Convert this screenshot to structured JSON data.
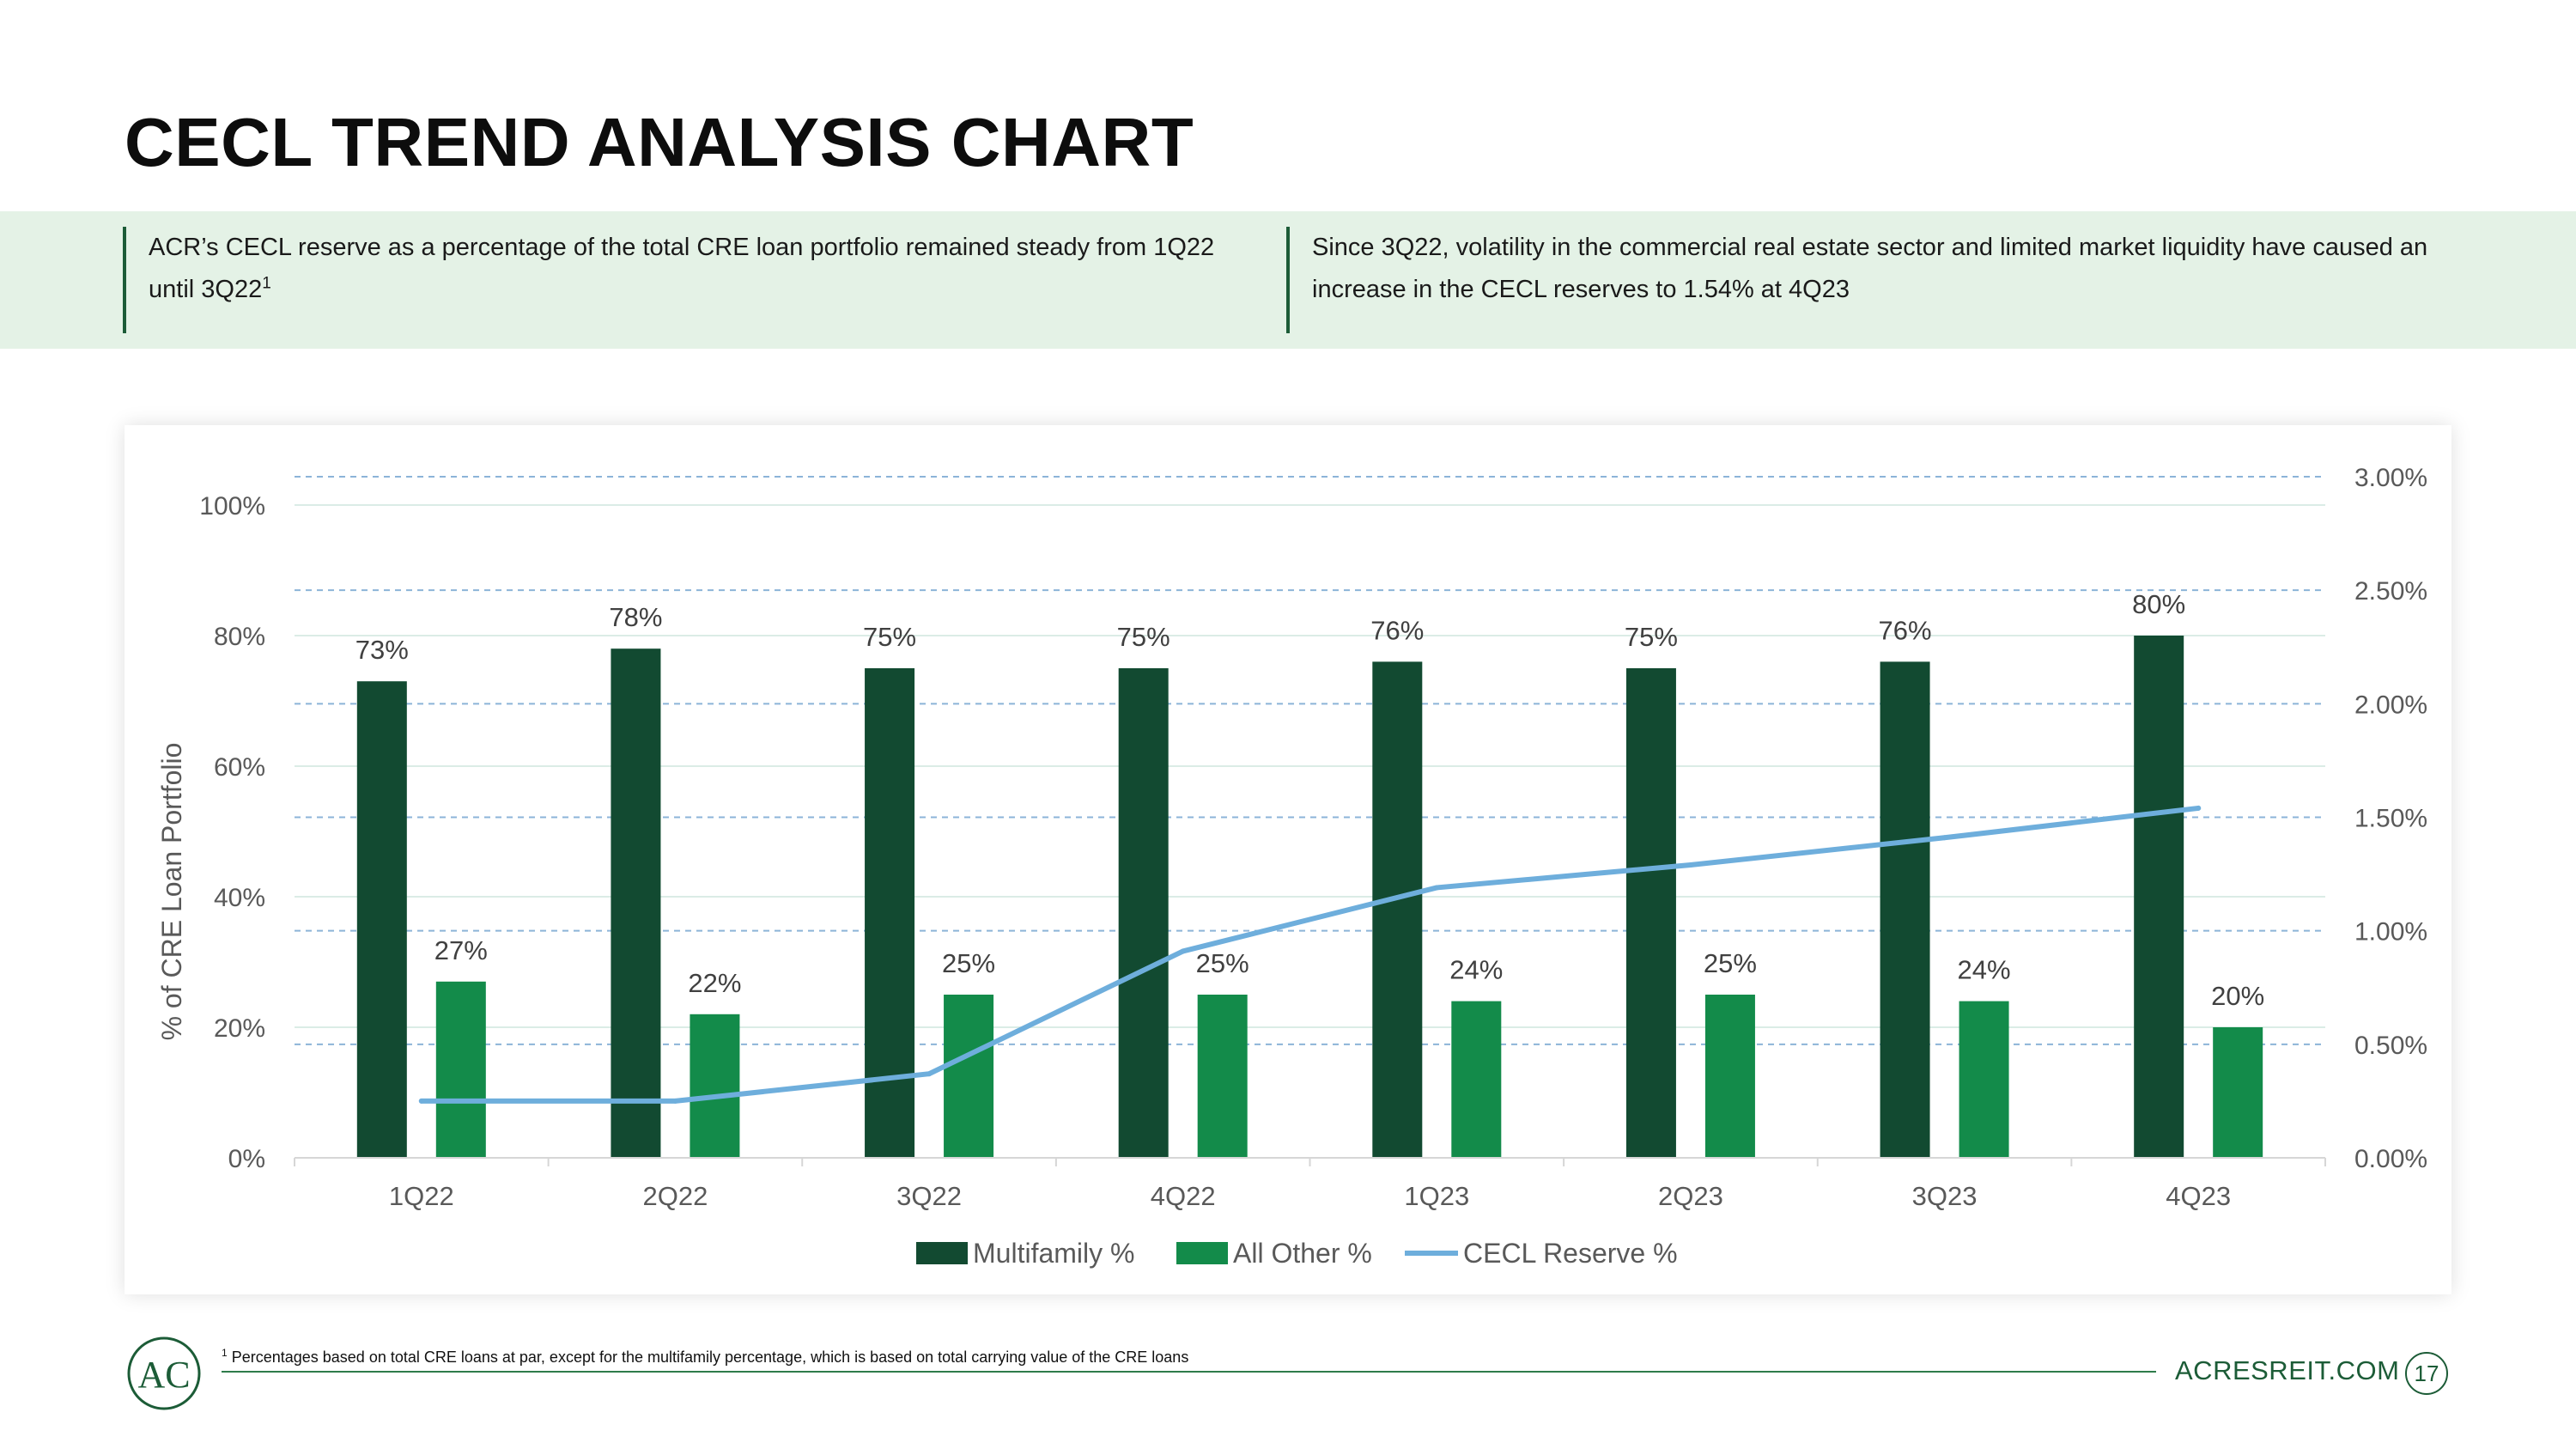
{
  "page": {
    "title": "CECL TREND ANALYSIS CHART",
    "callout_left": {
      "text": "ACR’s CECL reserve as a percentage of the total CRE loan portfolio remained steady from 1Q22 until 3Q22",
      "sup": "1"
    },
    "callout_right": {
      "text": "Since 3Q22, volatility in the commercial real estate sector and limited market liquidity have caused an increase in the CECL reserves to 1.54% at 4Q23"
    },
    "footnote": {
      "sup": "1",
      "text": "Percentages based on total CRE loans at par, except for the multifamily percentage, which is based on total carrying value of the CRE loans"
    },
    "site": "ACRESREIT.COM",
    "page_number": "17",
    "logo_letters": "AC"
  },
  "colors": {
    "accent_dark": "#1c5c37",
    "multifamily": "#124a31",
    "all_other": "#138b4a",
    "cecl_line": "#6eaedc",
    "band": "#e4f2e6"
  },
  "chart_data": {
    "type": "bar",
    "title": "",
    "categories": [
      "1Q22",
      "2Q22",
      "3Q22",
      "4Q22",
      "1Q23",
      "2Q23",
      "3Q23",
      "4Q23"
    ],
    "series": [
      {
        "name": "Multifamily %",
        "type": "bar",
        "axis": "left",
        "values": [
          73,
          78,
          75,
          75,
          76,
          75,
          76,
          80
        ],
        "labels": [
          "73%",
          "78%",
          "75%",
          "75%",
          "76%",
          "75%",
          "76%",
          "80%"
        ]
      },
      {
        "name": "All Other %",
        "type": "bar",
        "axis": "left",
        "values": [
          27,
          22,
          25,
          25,
          24,
          25,
          24,
          20
        ],
        "labels": [
          "27%",
          "22%",
          "25%",
          "25%",
          "24%",
          "25%",
          "24%",
          "20%"
        ]
      },
      {
        "name": "CECL Reserve %",
        "type": "line",
        "axis": "right",
        "values": [
          0.25,
          0.25,
          0.37,
          0.91,
          1.19,
          1.29,
          1.41,
          1.54
        ]
      }
    ],
    "ylabel": "% of CRE Loan Portfolio",
    "ylim": [
      0,
      100
    ],
    "yticks": [
      "0%",
      "20%",
      "40%",
      "60%",
      "80%",
      "100%"
    ],
    "y2lim": [
      0,
      3
    ],
    "y2ticks": [
      "0.00%",
      "0.50%",
      "1.00%",
      "1.50%",
      "2.00%",
      "2.50%",
      "3.00%"
    ],
    "legend": [
      "Multifamily %",
      "All Other %",
      "CECL Reserve %"
    ],
    "legend_position": "bottom"
  }
}
